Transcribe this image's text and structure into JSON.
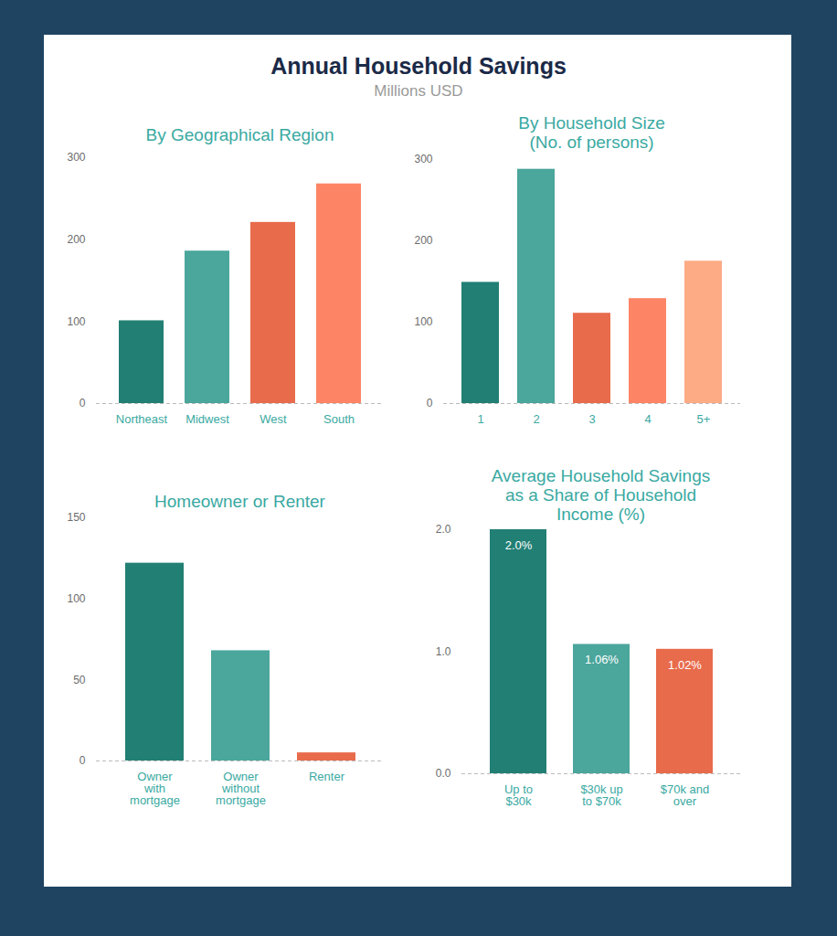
{
  "title": "Annual Household Savings",
  "subtitle": "Millions USD",
  "chart_data": [
    {
      "type": "bar",
      "title": "By Geographical Region",
      "categories": [
        "Northeast",
        "Midwest",
        "West",
        "South"
      ],
      "values": [
        101,
        186,
        221,
        268
      ],
      "colors": [
        "#227f74",
        "#4ba69c",
        "#e86b4c",
        "#fd8566"
      ],
      "ylim": [
        0,
        300
      ],
      "yticks": [
        0,
        100,
        200,
        300
      ],
      "grid": false
    },
    {
      "type": "bar",
      "title": "By Household Size\n(No. of persons)",
      "categories": [
        "1",
        "2",
        "3",
        "4",
        "5+"
      ],
      "values": [
        149,
        288,
        111,
        129,
        175
      ],
      "colors": [
        "#227f74",
        "#4ba69c",
        "#e86b4c",
        "#fd8566",
        "#fdab85"
      ],
      "ylim": [
        0,
        300
      ],
      "yticks": [
        0,
        100,
        200,
        300
      ],
      "grid": false
    },
    {
      "type": "bar",
      "title": "Homeowner or Renter",
      "categories": [
        "Owner\nwith\nmortgage",
        "Owner\nwithout\nmortgage",
        "Renter"
      ],
      "values": [
        122,
        68,
        5
      ],
      "colors": [
        "#227f74",
        "#4ba69c",
        "#e86b4c"
      ],
      "ylim": [
        0,
        150
      ],
      "yticks": [
        0,
        50,
        100,
        150
      ],
      "grid": false
    },
    {
      "type": "bar",
      "title": "Average Household Savings\nas a Share of Household\nIncome (%)",
      "categories": [
        "Up to\n$30k",
        "$30k up\nto $70k",
        "$70k and\nover"
      ],
      "values": [
        2.0,
        1.06,
        1.02
      ],
      "value_labels": [
        "2.0%",
        "1.06%",
        "1.02%"
      ],
      "data_labels": true,
      "colors": [
        "#227f74",
        "#4ba69c",
        "#e86b4c"
      ],
      "ylim": [
        0,
        2
      ],
      "yticks": [
        0,
        1,
        2
      ],
      "grid": false
    }
  ]
}
